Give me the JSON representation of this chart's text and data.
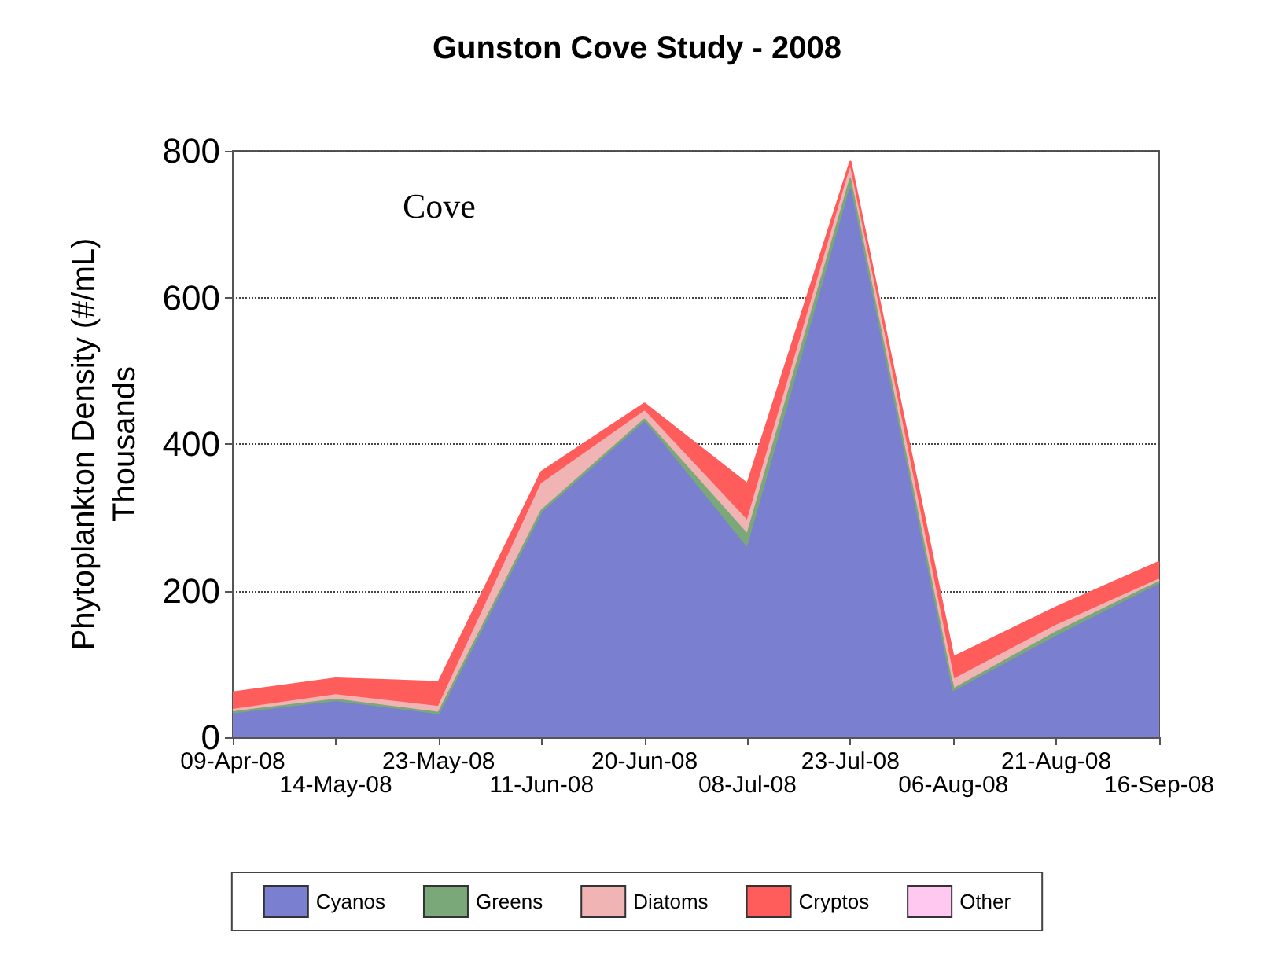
{
  "chart_data": {
    "type": "area",
    "title": "Gunston Cove Study - 2008",
    "ylabel": "Phytoplankton Density (#/mL)\nThousands",
    "annotations": [
      "Cove"
    ],
    "categories": [
      "09-Apr-08",
      "14-May-08",
      "23-May-08",
      "11-Jun-08",
      "20-Jun-08",
      "08-Jul-08",
      "23-Jul-08",
      "06-Aug-08",
      "21-Aug-08",
      "16-Sep-08"
    ],
    "stacked": true,
    "series": [
      {
        "name": "Cyanos",
        "color": "#7b7fd0",
        "values": [
          32,
          48,
          31,
          307,
          430,
          256,
          747,
          61,
          137,
          208
        ]
      },
      {
        "name": "Greens",
        "color": "#7aa878",
        "values": [
          2,
          3,
          2,
          2,
          3,
          20,
          14,
          4,
          6,
          4
        ]
      },
      {
        "name": "Diatoms",
        "color": "#f0b4b4",
        "values": [
          3,
          6,
          8,
          36,
          11,
          18,
          14,
          13,
          9,
          3
        ]
      },
      {
        "name": "Cryptos",
        "color": "#ff5c5c",
        "values": [
          24,
          23,
          34,
          17,
          11,
          51,
          10,
          31,
          25,
          24
        ]
      },
      {
        "name": "Other",
        "color": "#ffc8f0",
        "values": [
          null,
          null,
          null,
          null,
          null,
          null,
          null,
          null,
          null,
          null
        ]
      }
    ],
    "ylim": [
      0,
      800
    ],
    "yticks": [
      0,
      200,
      400,
      600,
      800
    ],
    "grid": "y",
    "legend": "bottom",
    "marker": "none"
  }
}
